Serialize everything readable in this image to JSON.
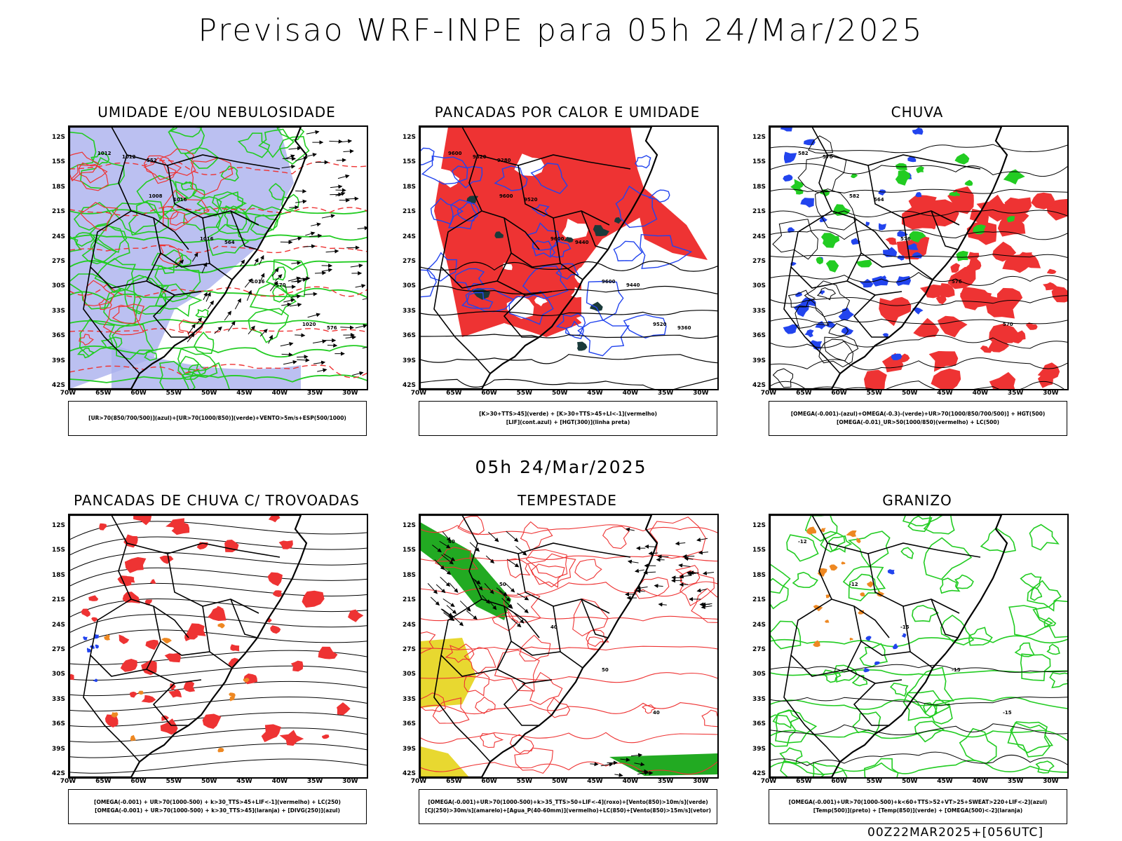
{
  "header": {
    "title": "Previsao WRF-INPE  para 05h 24/Mar/2025"
  },
  "middle": {
    "title": "05h 24/Mar/2025"
  },
  "footer": {
    "run_info": "00Z22MAR2025+[056UTC]"
  },
  "axes": {
    "lat_labels": [
      "12S",
      "15S",
      "18S",
      "21S",
      "24S",
      "27S",
      "30S",
      "33S",
      "36S",
      "39S",
      "42S"
    ],
    "lon_labels": [
      "70W",
      "65W",
      "60W",
      "55W",
      "50W",
      "45W",
      "40W",
      "35W",
      "30W"
    ]
  },
  "colors": {
    "humidity_blue": "#aab0ee",
    "green": "#22cc22",
    "red": "#ee3333",
    "blue": "#2244ee",
    "yellow": "#e8d830",
    "orange": "#ee8822",
    "dark": "#1a3a3a"
  },
  "panels": [
    {
      "id": "umidade",
      "title": "UMIDADE E/OU NEBULOSIDADE",
      "legend": [
        "[UR>70(850/700/500)](azul)+[UR>70(1000/850)](verde)+VENTO>5m/s+ESP(500/1000)"
      ],
      "labels": [
        "1012",
        "1008",
        "1016",
        "1016",
        "1020",
        "1012",
        "1016",
        "564",
        "570",
        "576",
        "552"
      ]
    },
    {
      "id": "pancadas-calor",
      "title": "PANCADAS POR CALOR E UMIDADE",
      "legend": [
        "[K>30+TTS>45](verde) + [K>30+TTS>45+LI<-1](vermelho)",
        "[LIF](cont.azul) + [HGT(300)](linha preta)"
      ],
      "labels": [
        "9600",
        "9600",
        "9600",
        "9600",
        "9520",
        "9520",
        "9520",
        "9440",
        "9440",
        "9360",
        "9280"
      ]
    },
    {
      "id": "chuva",
      "title": "CHUVA",
      "legend": [
        "[OMEGA(-0.001)-(azul)+OMEGA(-0.3)-(verde)+UR>70(1000/850/700/500)] + HGT(500)",
        "[OMEGA(-0.01)_UR>50(1000/850)(vermelho) + LC(500)"
      ],
      "labels": [
        "582",
        "582",
        "576",
        "576",
        "570",
        "570",
        "564"
      ]
    },
    {
      "id": "trovoadas",
      "title": "PANCADAS DE CHUVA C/ TROVOADAS",
      "legend": [
        "[OMEGA(-0.001) + UR>70(1000-500) + k>30_TTS>45+LIF<-1](vermelho) + LC(250)",
        "[OMEGA(-0.001) + UR>70(1000-500) + k>30_TTS>45](laranja) + [DIVG(250)](azul)"
      ],
      "labels": []
    },
    {
      "id": "tempestade",
      "title": "TEMPESTADE",
      "legend": [
        "[OMEGA(-0.001)+UR>70(1000-500)+k>35_TTS>50+LIF<-4](roxo)+[Vento(850)>10m/s](verde)",
        "[CJ(250)>30m/s](amarelo)+[Agua_P(40-60mm)](vermelho)+LC(850)+[Vento(850)>15m/s](vetor)"
      ],
      "labels": [
        "40",
        "50",
        "40",
        "50",
        "40"
      ]
    },
    {
      "id": "granizo",
      "title": "GRANIZO",
      "legend": [
        "[OMEGA(-0.001)+UR>70(1000-500)+k<60+TTS>52+VT>25+SWEAT>220+LIF<-2](azul)",
        "[Temp(500)](preto) + [Temp(850)](verde) + [OMEGA(500)<-2](laranja)"
      ],
      "labels": [
        "-12",
        "-12",
        "-15",
        "-15",
        "-15"
      ]
    }
  ]
}
